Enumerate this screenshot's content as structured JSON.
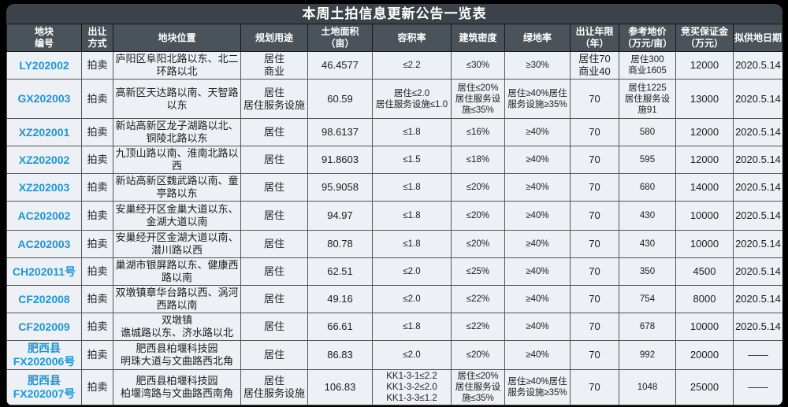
{
  "title": "本周土拍信息更新公告一览表",
  "colors": {
    "accent_link_blue": "#1e95d6",
    "title_bar_bg": "#3b4249",
    "header_bg": "#4a525a",
    "row_bg": "#edf1f6",
    "page_bg": "#000000"
  },
  "columns": [
    "地块\n编号",
    "出让\n方式",
    "地块位置",
    "规划用途",
    "土地面积\n（亩）",
    "容积率",
    "建筑密度",
    "绿地率",
    "出让年限\n（年）",
    "参考地价\n（万元/亩）",
    "竞买保证金\n（万元）",
    "拟供地日期"
  ],
  "rows": [
    {
      "plot_id": "LY202002",
      "method": "拍卖",
      "location": "庐阳区阜阳北路以东、北二环路以北",
      "planned_use": "居住\n商业",
      "area": "46.4577",
      "far": "≤2.2",
      "density": "≤30%",
      "green_rate": "≥30%",
      "years": "居住70\n商业40",
      "ref_price": "居住300\n商业1605",
      "deposit": "12000",
      "supply_date": "2020.5.14"
    },
    {
      "plot_id": "GX202003",
      "method": "拍卖",
      "location": "高新区天达路以南、天智路以东",
      "planned_use": "居住\n居住服务设施",
      "area": "60.59",
      "far": "居住≤2.0\n居住服务设施≤1.0",
      "density": "居住≤20%居住服务设施≤35%",
      "green_rate": "居住≥40%居住服务设施≥35%",
      "years": "70",
      "ref_price": "居住1225\n居住服务设施91",
      "deposit": "13000",
      "supply_date": "2020.5.14"
    },
    {
      "plot_id": "XZ202001",
      "method": "拍卖",
      "location": "新站高新区龙子湖路以北、铜陵北路以东",
      "planned_use": "居住",
      "area": "98.6137",
      "far": "≤1.8",
      "density": "≤16%",
      "green_rate": "≥40%",
      "years": "70",
      "ref_price": "580",
      "deposit": "12000",
      "supply_date": "2020.5.14"
    },
    {
      "plot_id": "XZ202002",
      "method": "拍卖",
      "location": "九顶山路以南、淮南北路以西",
      "planned_use": "居住",
      "area": "91.8603",
      "far": "≤1.5",
      "density": "≤18%",
      "green_rate": "≥40%",
      "years": "70",
      "ref_price": "595",
      "deposit": "12000",
      "supply_date": "2020.5.14"
    },
    {
      "plot_id": "XZ202003",
      "method": "拍卖",
      "location": "新站高新区魏武路以南、童亭路以东",
      "planned_use": "居住",
      "area": "95.9058",
      "far": "≤1.8",
      "density": "≤20%",
      "green_rate": "≥40%",
      "years": "70",
      "ref_price": "680",
      "deposit": "14000",
      "supply_date": "2020.5.14"
    },
    {
      "plot_id": "AC202002",
      "method": "拍卖",
      "location": "安巢经开区金巢大道以东、金湖大道以南",
      "planned_use": "居住",
      "area": "94.97",
      "far": "≤1.8",
      "density": "≤20%",
      "green_rate": "≥40%",
      "years": "70",
      "ref_price": "430",
      "deposit": "10000",
      "supply_date": "2020.5.14"
    },
    {
      "plot_id": "AC202003",
      "method": "拍卖",
      "location": "安巢经开区金湖大道以南、潜川路以西",
      "planned_use": "居住",
      "area": "80.78",
      "far": "≤1.8",
      "density": "≤20%",
      "green_rate": "≥40%",
      "years": "70",
      "ref_price": "430",
      "deposit": "10000",
      "supply_date": "2020.5.14"
    },
    {
      "plot_id": "CH202011号",
      "method": "拍卖",
      "location": "巢湖市银屏路以东、健康西路以南",
      "planned_use": "居住",
      "area": "62.51",
      "far": "≤2.0",
      "density": "≤25%",
      "green_rate": "≥40%",
      "years": "70",
      "ref_price": "350",
      "deposit": "4500",
      "supply_date": "2020.5.14"
    },
    {
      "plot_id": "CF202008",
      "method": "拍卖",
      "location": "双墩镇章华台路以西、涡河西路以南",
      "planned_use": "居住",
      "area": "49.16",
      "far": "≤2.0",
      "density": "≤22%",
      "green_rate": "≥40%",
      "years": "70",
      "ref_price": "754",
      "deposit": "8000",
      "supply_date": "2020.5.14"
    },
    {
      "plot_id": "CF202009",
      "method": "拍卖",
      "location": "双墩镇\n谯城路以东、济水路以北",
      "planned_use": "居住",
      "area": "66.61",
      "far": "≤1.8",
      "density": "≤22%",
      "green_rate": "≥40%",
      "years": "70",
      "ref_price": "678",
      "deposit": "10000",
      "supply_date": "2020.5.14"
    },
    {
      "plot_id": "肥西县\nFX202006号",
      "method": "拍卖",
      "location": "肥西县柏堰科技园\n明珠大道与文曲路西北角",
      "planned_use": "居住",
      "area": "86.83",
      "far": "≤2.0",
      "density": "≤20%",
      "green_rate": "≥40%",
      "years": "70",
      "ref_price": "992",
      "deposit": "20000",
      "supply_date": "——"
    },
    {
      "plot_id": "肥西县\nFX202007号",
      "method": "拍卖",
      "location": "肥西县柏堰科技园\n柏堰湾路与文曲路西南角",
      "planned_use": "居住\n居住服务设施",
      "area": "106.83",
      "far": "KK1-3-1≤2.2\nKK1-3-2≤2.0\nKK1-3-3≤1.2",
      "density": "居住≤20%居住服务设施≤35%",
      "green_rate": "居住≥40%居住服务设施≥35%",
      "years": "70",
      "ref_price": "1048",
      "deposit": "25000",
      "supply_date": "——"
    }
  ]
}
